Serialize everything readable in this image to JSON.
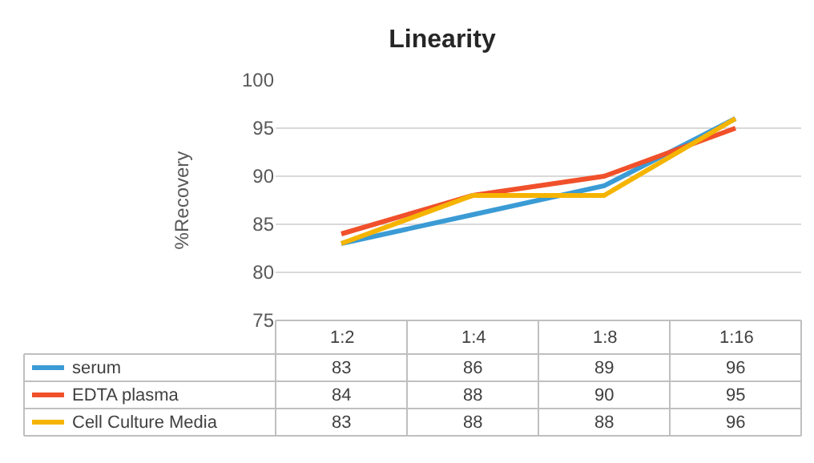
{
  "chart_data": {
    "type": "line",
    "title": "Linearity",
    "ylabel": "%Recovery",
    "categories": [
      "1:2",
      "1:4",
      "1:8",
      "1:16"
    ],
    "series": [
      {
        "name": "serum",
        "color": "#3a9bd5",
        "values": [
          83,
          86,
          89,
          96
        ]
      },
      {
        "name": "EDTA plasma",
        "color": "#f0502a",
        "values": [
          84,
          88,
          90,
          95
        ]
      },
      {
        "name": "Cell Culture Media",
        "color": "#f5b400",
        "values": [
          83,
          88,
          88,
          96
        ]
      }
    ],
    "ylim": [
      75,
      100
    ],
    "yticks": [
      75,
      80,
      85,
      90,
      95,
      100
    ],
    "grid": "y",
    "legend": "bottom",
    "data_labels": true,
    "marker": "none",
    "line_style": "solid"
  }
}
